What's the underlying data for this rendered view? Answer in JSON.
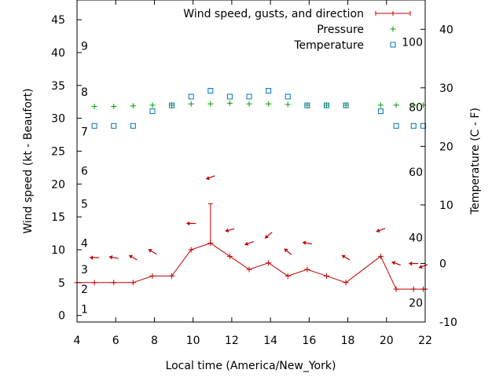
{
  "chart_data": {
    "type": "line",
    "xlabel": "Local time (America/New_York)",
    "ylabel_left": "Wind speed (kt - Beaufort)",
    "ylabel_right": "Temperature (C - F)",
    "xlim": [
      4,
      22
    ],
    "ylim_left": [
      -1,
      48
    ],
    "ylim_right": [
      -10,
      45
    ],
    "x_ticks": [
      "4",
      "6",
      "8",
      "10",
      "12",
      "14",
      "16",
      "18",
      "20",
      "22"
    ],
    "y_left_ticks": [
      "0",
      "5",
      "10",
      "15",
      "20",
      "25",
      "30",
      "35",
      "40",
      "45"
    ],
    "y_right_ticks": [
      "-10",
      "0",
      "10",
      "20",
      "30",
      "40"
    ],
    "beaufort_labels": [
      {
        "text": "1",
        "y": 1
      },
      {
        "text": "2",
        "y": 4
      },
      {
        "text": "3",
        "y": 7
      },
      {
        "text": "4",
        "y": 11
      },
      {
        "text": "5",
        "y": 17
      },
      {
        "text": "6",
        "y": 22
      },
      {
        "text": "7",
        "y": 28
      },
      {
        "text": "8",
        "y": 34
      },
      {
        "text": "9",
        "y": 41
      }
    ],
    "fahrenheit_labels": [
      {
        "text": "20",
        "y": -6.7
      },
      {
        "text": "40",
        "y": 4.4
      },
      {
        "text": "60",
        "y": 15.6
      },
      {
        "text": "80",
        "y": 26.7
      },
      {
        "text": "100",
        "y": 37.8
      }
    ],
    "legend": [
      {
        "label": "Wind speed, gusts, and direction",
        "color": "#c00000",
        "marker": "line-plus"
      },
      {
        "label": "Pressure",
        "color": "#00a000",
        "marker": "plus"
      },
      {
        "label": "Temperature",
        "color": "#0070c0",
        "marker": "square"
      }
    ],
    "legend_position": "top-right",
    "wind": {
      "x": [
        4,
        4.9,
        5.9,
        6.9,
        7.9,
        8.9,
        9.9,
        10.9,
        11.9,
        12.9,
        13.9,
        14.9,
        15.9,
        16.9,
        17.9,
        19.7,
        20.5,
        21.4,
        21.9,
        22
      ],
      "speed": [
        5,
        5,
        5,
        5,
        6,
        6,
        10,
        11,
        9,
        7,
        8,
        6,
        7,
        6,
        5,
        9,
        4,
        4,
        4,
        4
      ],
      "gusts": [
        {
          "x": 10.9,
          "y": 17
        }
      ]
    },
    "wind_direction_arrows": [
      {
        "x": 4.9,
        "y": 8.8,
        "angle": 180
      },
      {
        "x": 5.9,
        "y": 8.8,
        "angle": 170
      },
      {
        "x": 6.9,
        "y": 8.8,
        "angle": 150
      },
      {
        "x": 7.9,
        "y": 9.7,
        "angle": 150
      },
      {
        "x": 9.9,
        "y": 14,
        "angle": 180
      },
      {
        "x": 10.9,
        "y": 21,
        "angle": 200
      },
      {
        "x": 11.9,
        "y": 13,
        "angle": 195
      },
      {
        "x": 12.9,
        "y": 11,
        "angle": 200
      },
      {
        "x": 13.9,
        "y": 12.2,
        "angle": 220
      },
      {
        "x": 14.9,
        "y": 9.7,
        "angle": 140
      },
      {
        "x": 15.9,
        "y": 11,
        "angle": 170
      },
      {
        "x": 17.9,
        "y": 8.8,
        "angle": 150
      },
      {
        "x": 19.7,
        "y": 13,
        "angle": 200
      },
      {
        "x": 20.5,
        "y": 7.9,
        "angle": 160
      },
      {
        "x": 21.4,
        "y": 7.9,
        "angle": 180
      },
      {
        "x": 21.9,
        "y": 7.5,
        "angle": 200
      }
    ],
    "pressure": {
      "x": [
        4.9,
        5.9,
        6.9,
        7.9,
        8.9,
        9.9,
        10.9,
        11.9,
        12.9,
        13.9,
        14.9,
        15.9,
        16.9,
        17.9,
        19.7,
        20.5,
        21.4,
        21.9
      ],
      "y": [
        31.8,
        31.8,
        31.9,
        32,
        32,
        32.2,
        32.2,
        32.3,
        32.2,
        32.2,
        32.1,
        32,
        32,
        32,
        32,
        32,
        32,
        32
      ]
    },
    "temperature": {
      "x": [
        4.9,
        5.9,
        6.9,
        7.9,
        8.9,
        9.9,
        10.9,
        11.9,
        12.9,
        13.9,
        14.9,
        15.9,
        16.9,
        17.9,
        19.7,
        20.5,
        21.4,
        21.9
      ],
      "y": [
        23.5,
        23.5,
        23.5,
        26,
        27,
        28.5,
        29.5,
        28.5,
        28.5,
        29.5,
        28.5,
        27,
        27,
        27,
        26,
        23.5,
        23.5,
        23.5
      ]
    },
    "colors": {
      "wind": "#c00000",
      "pressure": "#00a000",
      "temperature": "#0070c0",
      "axis": "#000000"
    }
  }
}
